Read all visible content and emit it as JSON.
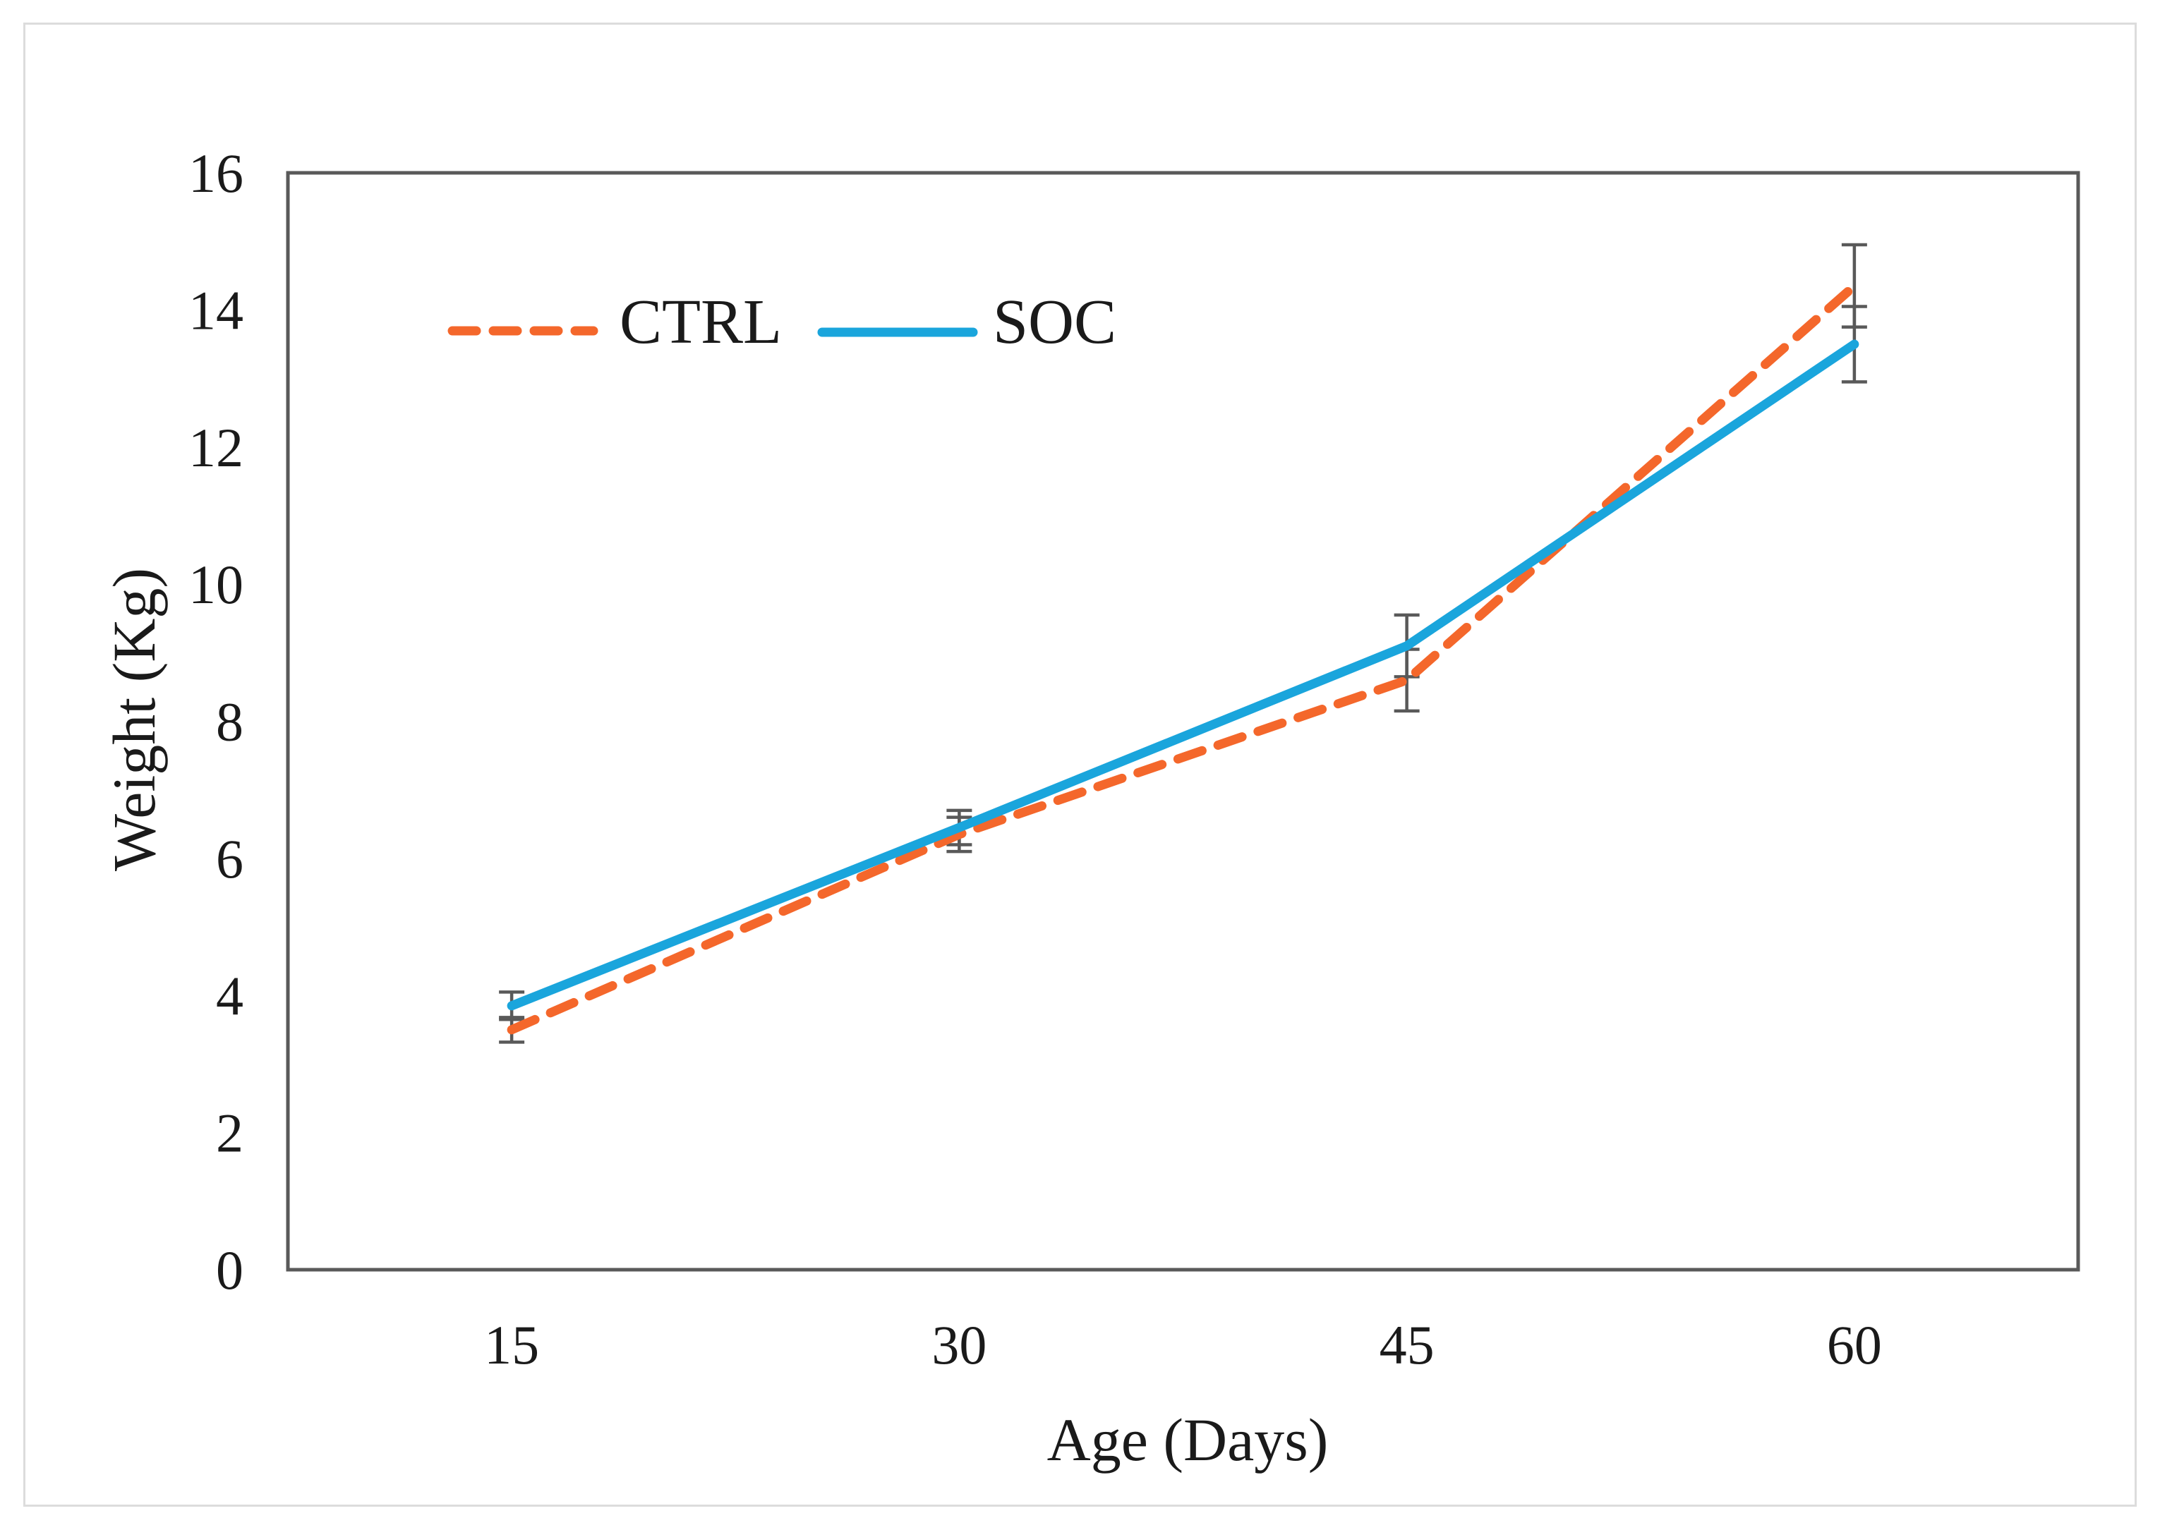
{
  "chart_data": {
    "type": "line",
    "title": "",
    "xlabel": "Age (Days)",
    "ylabel": "Weight (Kg)",
    "x": [
      "15",
      "30",
      "45",
      "60"
    ],
    "ylim": [
      0,
      16
    ],
    "ytick_step": 2,
    "yticks": [
      "0",
      "2",
      "4",
      "6",
      "8",
      "10",
      "12",
      "14",
      "16"
    ],
    "grid": false,
    "legend_position": "top-left-inside",
    "axis_color": "#595959",
    "error_bar_color": "#595959",
    "text_color": "#1a1a1a",
    "series": [
      {
        "name": "CTRL",
        "style": "dashed",
        "color": "#F4672B",
        "values": [
          3.5,
          6.35,
          8.6,
          14.35
        ],
        "errors": [
          0.18,
          0.25,
          0.45,
          0.6
        ]
      },
      {
        "name": "SOC",
        "style": "solid",
        "color": "#1AA5DC",
        "values": [
          3.85,
          6.45,
          9.1,
          13.5
        ],
        "errors": [
          0.2,
          0.25,
          0.45,
          0.55
        ]
      }
    ]
  }
}
